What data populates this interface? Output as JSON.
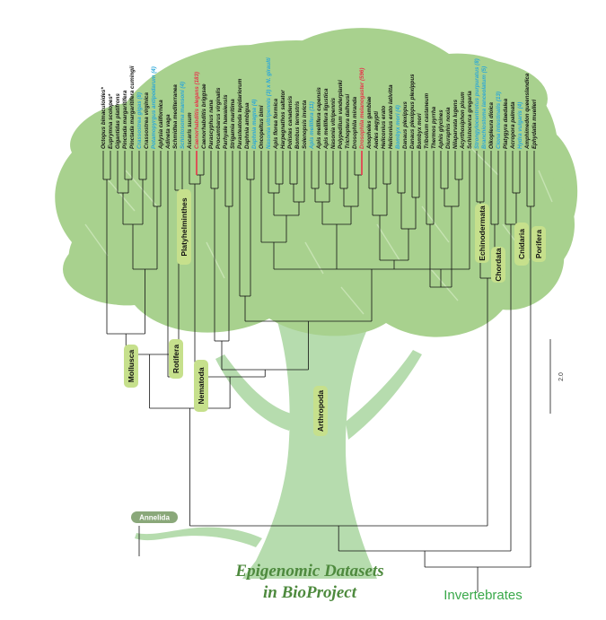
{
  "title": {
    "line1": "Epigenomic Datasets",
    "line2": "in BioProject"
  },
  "scale_bar": {
    "label": "2.0"
  },
  "root_label": "Invertebrates",
  "colors": {
    "tree_foliage": "#a8d18e",
    "tree_trunk": "#b6dcae",
    "clade_box": "#c6e08c",
    "branch": "#111111",
    "highlight_branch": "#e8334a",
    "blue_taxon": "#2aa7d8",
    "red_taxon": "#e8334a",
    "title_green": "#4e8a3e",
    "root_label_green": "#3aa84a",
    "annelida_pill": "#8aa87a"
  },
  "taxa": [
    {
      "name": "Octopus bimaculoides*",
      "color": "black"
    },
    {
      "name": "Euprymna scolopes*",
      "color": "black"
    },
    {
      "name": "Gigantidas platifrons",
      "color": "black"
    },
    {
      "name": "Pinctada margaritifera",
      "color": "black"
    },
    {
      "name": "Pinctada margaritifera cumingii",
      "color": "black"
    },
    {
      "name": "Crassostrea gigas (8)",
      "color": "blue"
    },
    {
      "name": "Crassostrea virginica",
      "color": "black"
    },
    {
      "name": "Potamopyrgus antipodarum (4)",
      "color": "blue"
    },
    {
      "name": "Aplysia californica",
      "color": "black"
    },
    {
      "name": "Adineta vaga",
      "color": "black"
    },
    {
      "name": "Schmidtea mediterranea",
      "color": "black"
    },
    {
      "name": "Schistosoma mansoni (4)",
      "color": "blue"
    },
    {
      "name": "Ascaris suum",
      "color": "black"
    },
    {
      "name": "Caenorhabditis elegans (183)",
      "color": "red"
    },
    {
      "name": "Caenorhabditis briggsae",
      "color": "black"
    },
    {
      "name": "Parascyphus nana",
      "color": "black"
    },
    {
      "name": "Procambarus virginalis",
      "color": "black"
    },
    {
      "name": "Parhyale hawaiensis",
      "color": "black"
    },
    {
      "name": "Strigamia maritima",
      "color": "black"
    },
    {
      "name": "Parasteatoda tepidariorum",
      "color": "black"
    },
    {
      "name": "Daphnia ambigua",
      "color": "black"
    },
    {
      "name": "Daphnia magna (4)",
      "color": "blue"
    },
    {
      "name": "Oncopeltus bimi",
      "color": "black"
    },
    {
      "name": "Nasonia vitripennis (3) x N. giraulti",
      "color": "blue"
    },
    {
      "name": "Apis florea formica",
      "color": "black"
    },
    {
      "name": "Harpegnathos saltator",
      "color": "black"
    },
    {
      "name": "Polistes canadensis",
      "color": "black"
    },
    {
      "name": "Bombus terrestris",
      "color": "black"
    },
    {
      "name": "Solenopsis invicta",
      "color": "black"
    },
    {
      "name": "Apis mellifera (11)",
      "color": "blue"
    },
    {
      "name": "Apis mellifera capensis",
      "color": "black"
    },
    {
      "name": "Apis mellifera ligustica",
      "color": "black"
    },
    {
      "name": "Nasonia vitripennis",
      "color": "black"
    },
    {
      "name": "Polypedilum vanderplanki",
      "color": "black"
    },
    {
      "name": "Trichoptera dalhousi",
      "color": "black"
    },
    {
      "name": "Drosophila miranda",
      "color": "black"
    },
    {
      "name": "Drosophila melanogaster (596)",
      "color": "red"
    },
    {
      "name": "Anopheles gambiae",
      "color": "black"
    },
    {
      "name": "Aedes aegypti",
      "color": "black"
    },
    {
      "name": "Heliconius erato",
      "color": "black"
    },
    {
      "name": "Heliconius erato lativitta",
      "color": "black"
    },
    {
      "name": "Bombyx mori (4)",
      "color": "blue"
    },
    {
      "name": "Danaus plexippus",
      "color": "black"
    },
    {
      "name": "Danaus plexippus plexippus",
      "color": "black"
    },
    {
      "name": "Bombyx mori",
      "color": "black"
    },
    {
      "name": "Tribolium castaneum",
      "color": "black"
    },
    {
      "name": "Thermos pyrrha",
      "color": "black"
    },
    {
      "name": "Aphis glycines",
      "color": "black"
    },
    {
      "name": "Diuraphis noxia",
      "color": "black"
    },
    {
      "name": "Nilaparvata lugens",
      "color": "black"
    },
    {
      "name": "Acyrthosiphon pisum",
      "color": "black"
    },
    {
      "name": "Schistocerca gregaria",
      "color": "black"
    },
    {
      "name": "Strongylocentrotus purpuratus (8)",
      "color": "blue"
    },
    {
      "name": "Branchiostoma lanceolatum (5)",
      "color": "blue"
    },
    {
      "name": "Oikopleura dioica",
      "color": "black"
    },
    {
      "name": "Ciona intestinalis (13)",
      "color": "blue"
    },
    {
      "name": "Platygyra daedalea",
      "color": "black"
    },
    {
      "name": "Acropora palmata",
      "color": "black"
    },
    {
      "name": "Hydra vulgaris (4)",
      "color": "blue"
    },
    {
      "name": "Amphimedon queenslandica",
      "color": "black"
    },
    {
      "name": "Ephydatia muelleri",
      "color": "black"
    }
  ],
  "clades": [
    {
      "id": "mollusca",
      "label": "Mollusca"
    },
    {
      "id": "rotifera",
      "label": "Rotifera"
    },
    {
      "id": "platyhelminthes",
      "label": "Platyhelminthes"
    },
    {
      "id": "nematoda",
      "label": "Nematoda"
    },
    {
      "id": "arthropoda",
      "label": "Arthropoda"
    },
    {
      "id": "echinodermata",
      "label": "Echinodermata"
    },
    {
      "id": "chordata",
      "label": "Chordata"
    },
    {
      "id": "cnidaria",
      "label": "Cnidaria"
    },
    {
      "id": "porifera",
      "label": "Porifera"
    },
    {
      "id": "annelida",
      "label": "Annelida"
    }
  ]
}
